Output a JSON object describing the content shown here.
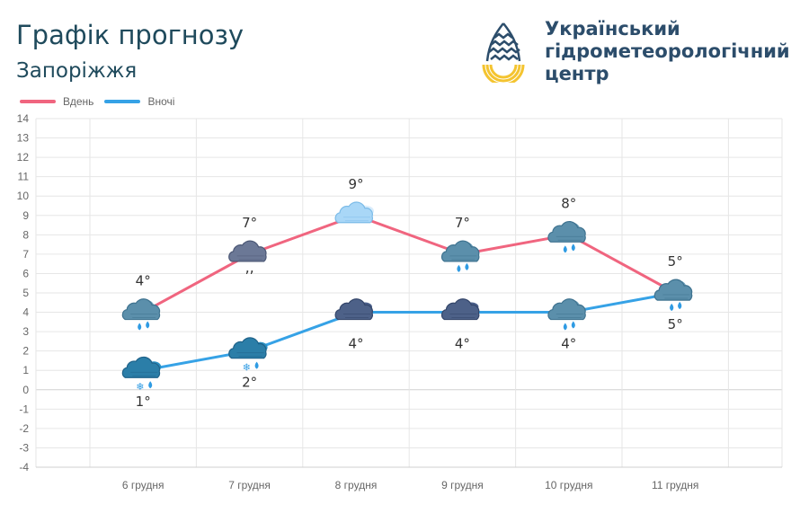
{
  "header": {
    "title": "Графік прогнозу",
    "city": "Запоріжжя",
    "org_lines": [
      "Український",
      "гідрометеорологічний",
      "центр"
    ]
  },
  "colors": {
    "day": "#f0657f",
    "night": "#36a2e6",
    "title": "#1f4a5c",
    "org": "#2c4d6b",
    "logo_blue": "#2c4d6b",
    "logo_yellow": "#f4c430"
  },
  "chart_data": {
    "type": "line",
    "categories": [
      "6 грудня",
      "7 грудня",
      "8 грудня",
      "9 грудня",
      "10 грудня",
      "11 грудня"
    ],
    "series": [
      {
        "name": "Вдень",
        "values": [
          4,
          7,
          9,
          7,
          8,
          5
        ],
        "labels": [
          "4°",
          "7°",
          "9°",
          "7°",
          "8°",
          "5°"
        ],
        "icons": [
          "overcast-rain-icon",
          "cloudy-drizzle-icon",
          "partly-cloudy-icon",
          "overcast-rain-icon",
          "overcast-rain-icon",
          "overcast-rain-icon"
        ]
      },
      {
        "name": "Вночі",
        "values": [
          1,
          2,
          4,
          4,
          4,
          5
        ],
        "labels": [
          "1°",
          "2°",
          "4°",
          "4°",
          "4°",
          "5°"
        ],
        "icons": [
          "cloudy-sleet-icon",
          "cloudy-sleet-icon",
          "overcast-icon",
          "overcast-icon",
          "overcast-rain-icon",
          "overcast-rain-icon"
        ]
      }
    ],
    "ylim": [
      -4,
      14
    ],
    "yticks": [
      14,
      13,
      12,
      11,
      10,
      9,
      8,
      7,
      6,
      5,
      4,
      3,
      2,
      1,
      0,
      -1,
      -2,
      -3,
      -4
    ],
    "legend": "top-left",
    "grid": true
  }
}
